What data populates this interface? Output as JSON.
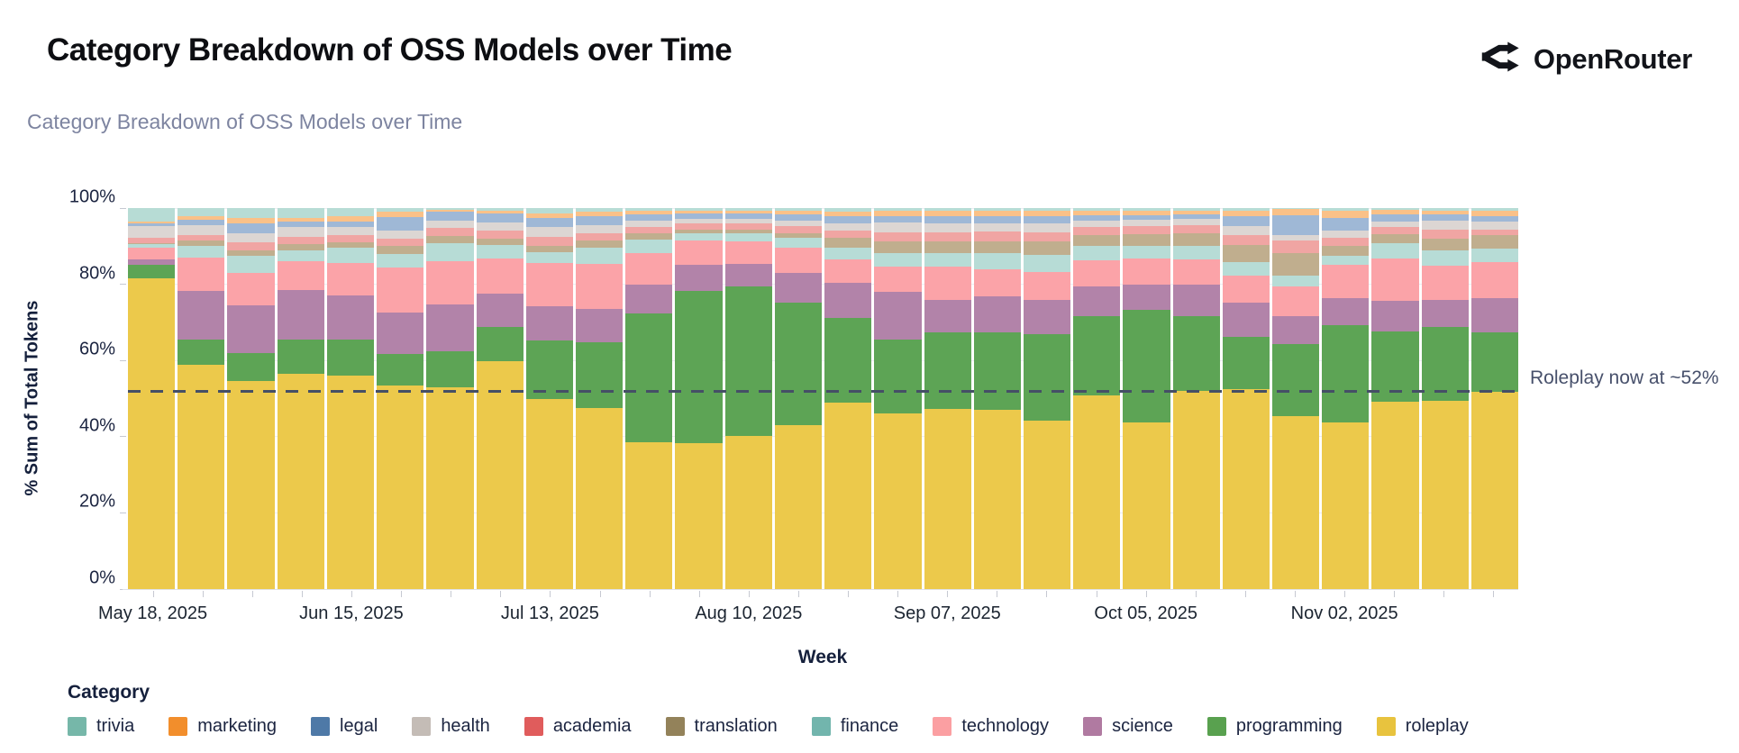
{
  "header": {
    "title": "Category Breakdown of OSS Models over Time",
    "brand": "OpenRouter"
  },
  "chart": {
    "subtitle": "Category Breakdown of OSS Models over Time",
    "y_axis": {
      "title": "% Sum of Total Tokens",
      "ticks": [
        "0%",
        "20%",
        "40%",
        "60%",
        "80%",
        "100%"
      ]
    },
    "x_axis": {
      "title": "Week",
      "tick_every": 4,
      "tick_labels": [
        "May 18, 2025",
        "Jun 15, 2025",
        "Jul 13, 2025",
        "Aug 10, 2025",
        "Sep 07, 2025",
        "Oct 05, 2025",
        "Nov 02, 2025"
      ]
    },
    "annotation": {
      "text": "Roleplay now at ~52%",
      "value_pct": 52
    },
    "legend": {
      "title": "Category",
      "items": [
        {
          "label": "trivia",
          "color": "#76b7a9"
        },
        {
          "label": "marketing",
          "color": "#f28e2c"
        },
        {
          "label": "legal",
          "color": "#4e79a7"
        },
        {
          "label": "health",
          "color": "#c4bcb6"
        },
        {
          "label": "academia",
          "color": "#e05c5c"
        },
        {
          "label": "translation",
          "color": "#93825a"
        },
        {
          "label": "finance",
          "color": "#72b5ad"
        },
        {
          "label": "technology",
          "color": "#fb9fa2"
        },
        {
          "label": "science",
          "color": "#b07aa1"
        },
        {
          "label": "programming",
          "color": "#59a14f"
        },
        {
          "label": "roleplay",
          "color": "#e8c33e"
        }
      ]
    }
  },
  "chart_data": {
    "type": "bar",
    "stacked": true,
    "title": "Category Breakdown of OSS Models over Time",
    "xlabel": "Week",
    "ylabel": "% Sum of Total Tokens",
    "ylim": [
      0,
      100
    ],
    "grid": "horizontal-faint",
    "legend_position": "bottom",
    "legend_order_displayed": [
      "trivia",
      "marketing",
      "legal",
      "health",
      "academia",
      "translation",
      "finance",
      "technology",
      "science",
      "programming",
      "roleplay"
    ],
    "annotation": {
      "text": "Roleplay now at ~52%",
      "y": 52,
      "style": "dashed-horizontal-line"
    },
    "x": [
      "May 18, 2025",
      "May 25, 2025",
      "Jun 01, 2025",
      "Jun 08, 2025",
      "Jun 15, 2025",
      "Jun 22, 2025",
      "Jun 29, 2025",
      "Jul 06, 2025",
      "Jul 13, 2025",
      "Jul 20, 2025",
      "Jul 27, 2025",
      "Aug 03, 2025",
      "Aug 10, 2025",
      "Aug 17, 2025",
      "Aug 24, 2025",
      "Aug 31, 2025",
      "Sep 07, 2025",
      "Sep 14, 2025",
      "Sep 21, 2025",
      "Sep 28, 2025",
      "Oct 05, 2025",
      "Oct 12, 2025",
      "Oct 19, 2025",
      "Oct 26, 2025",
      "Nov 02, 2025",
      "Nov 09, 2025",
      "Nov 16, 2025",
      "Nov 23, 2025"
    ],
    "series": [
      {
        "name": "roleplay",
        "legend_color": "#e8c33e",
        "bar_color": "#ecc94b",
        "values": [
          81.5,
          58.9,
          54.5,
          56.5,
          56,
          53.4,
          53,
          59.8,
          49.9,
          47.6,
          38.5,
          38.2,
          40.1,
          43,
          48.9,
          46.1,
          47.3,
          47,
          44.2,
          50.8,
          43.7,
          52,
          52.5,
          45.3,
          43.7,
          49.1,
          49.4,
          51.8
        ]
      },
      {
        "name": "programming",
        "legend_color": "#59a14f",
        "bar_color": "#5da455",
        "values": [
          3.5,
          6.7,
          7.5,
          9,
          9.5,
          8.3,
          9.4,
          9.1,
          15.3,
          17.2,
          33.8,
          40.1,
          39.4,
          32.2,
          22.2,
          19.5,
          20,
          20.3,
          22.6,
          20.8,
          29.6,
          19.6,
          13.8,
          19.1,
          25.5,
          18.5,
          19.4,
          15.5
        ]
      },
      {
        "name": "science",
        "legend_color": "#b07aa1",
        "bar_color": "#b283a9",
        "values": [
          1.5,
          12.7,
          12.5,
          13,
          11.5,
          10.9,
          12.3,
          8.7,
          9,
          8.7,
          7.5,
          6.9,
          5.9,
          7.9,
          9.3,
          12.4,
          8.6,
          9.5,
          9,
          7.9,
          6.7,
          8.4,
          8.9,
          7.2,
          7.2,
          8,
          7.2,
          9
        ]
      },
      {
        "name": "technology",
        "legend_color": "#fb9fa2",
        "bar_color": "#fba3a8",
        "values": [
          3,
          8.7,
          8.5,
          7.5,
          8.5,
          11.8,
          11.4,
          9.1,
          11.4,
          11.8,
          8.5,
          6.2,
          5.8,
          6.4,
          6.2,
          6.7,
          8.8,
          7.2,
          7.4,
          6.9,
          6.7,
          6.6,
          7.1,
          7.9,
          8.8,
          11.1,
          8.8,
          9.5
        ]
      },
      {
        "name": "finance",
        "legend_color": "#72b5ad",
        "bar_color": "#b7dcd6",
        "values": [
          1,
          3,
          4.5,
          3,
          4,
          3.6,
          4.7,
          3.5,
          2.8,
          4.4,
          3.5,
          2,
          2.2,
          2.7,
          3,
          3.5,
          3.5,
          4.3,
          4.5,
          3.6,
          3.5,
          3.4,
          3.6,
          2.7,
          2.3,
          4,
          4,
          3.6
        ]
      },
      {
        "name": "translation",
        "legend_color": "#93825a",
        "bar_color": "#c0ae8e",
        "values": [
          0.3,
          1.5,
          1.5,
          1.5,
          1.5,
          2.1,
          1.9,
          1.7,
          1.6,
          1.8,
          1.5,
          1,
          1,
          1.3,
          2.5,
          3,
          3,
          3,
          3.5,
          3,
          3,
          3.5,
          4.5,
          5.9,
          2.5,
          2.4,
          3.1,
          3.5
        ]
      },
      {
        "name": "academia",
        "legend_color": "#e05c5c",
        "bar_color": "#f0a5a3",
        "values": [
          1.5,
          1.5,
          2,
          2,
          2,
          1.9,
          2.1,
          2.1,
          2.5,
          2,
          1.8,
          1.5,
          1.5,
          1.8,
          2,
          2.5,
          2.5,
          2.5,
          2.5,
          2,
          2,
          2,
          2.5,
          3.4,
          2.2,
          1.9,
          2.4,
          1.5
        ]
      },
      {
        "name": "health",
        "legend_color": "#c4bcb6",
        "bar_color": "#dcd6d3",
        "values": [
          3,
          2.5,
          2.5,
          2.5,
          2,
          2,
          1.9,
          2.2,
          2.5,
          2,
          1.7,
          1.2,
          1.2,
          1.5,
          2,
          2.5,
          2.4,
          2.2,
          2.2,
          1.8,
          1.8,
          1.7,
          2.5,
          1.4,
          2,
          1.5,
          2.3,
          2
        ]
      },
      {
        "name": "legal",
        "legend_color": "#4e79a7",
        "bar_color": "#9fb8d6",
        "values": [
          0.7,
          1.5,
          2.5,
          1.5,
          1.5,
          3.6,
          2.3,
          2.3,
          2.5,
          2.5,
          1.5,
          1.4,
          1.4,
          1.5,
          1.8,
          1.8,
          1.9,
          1.9,
          1.9,
          1.4,
          1.2,
          1.2,
          2.5,
          5.3,
          3.3,
          1.8,
          1.7,
          1.5
        ]
      },
      {
        "name": "marketing",
        "legend_color": "#f28e2c",
        "bar_color": "#fac188",
        "values": [
          0.5,
          1,
          1.5,
          1,
          1.5,
          1.4,
          0.5,
          0.8,
          1.2,
          1,
          1,
          0.9,
          0.9,
          1,
          1.2,
          1.2,
          1.2,
          1.3,
          1.4,
          1,
          1,
          1,
          1.3,
          1.5,
          1.7,
          1.2,
          1,
          1.5
        ]
      },
      {
        "name": "trivia",
        "legend_color": "#76b7a9",
        "bar_color": "#b7dcd5",
        "values": [
          3.5,
          2,
          2.5,
          2.5,
          2,
          1,
          0.5,
          0.7,
          1.3,
          1,
          0.7,
          0.6,
          0.6,
          0.7,
          0.9,
          0.8,
          0.8,
          0.8,
          0.8,
          0.8,
          0.8,
          0.6,
          0.8,
          0.3,
          0.8,
          0.5,
          0.7,
          0.6
        ]
      }
    ]
  }
}
